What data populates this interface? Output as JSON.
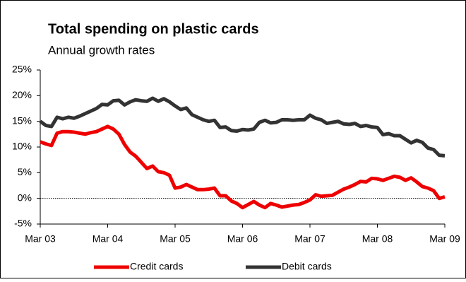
{
  "chart_data": {
    "type": "line",
    "title": "Total spending on plastic cards",
    "subtitle": "Annual growth rates",
    "categories": [
      "Mar 03",
      null,
      null,
      null,
      null,
      null,
      null,
      null,
      null,
      null,
      null,
      null,
      "Mar 04",
      null,
      null,
      null,
      null,
      null,
      null,
      null,
      null,
      null,
      null,
      null,
      "Mar 05",
      null,
      null,
      null,
      null,
      null,
      null,
      null,
      null,
      null,
      null,
      null,
      "Mar 06",
      null,
      null,
      null,
      null,
      null,
      null,
      null,
      null,
      null,
      null,
      null,
      "Mar 07",
      null,
      null,
      null,
      null,
      null,
      null,
      null,
      null,
      null,
      null,
      null,
      "Mar 08",
      null,
      null,
      null,
      null,
      null,
      null,
      null,
      null,
      null,
      null,
      null,
      "Mar 09"
    ],
    "series": [
      {
        "name": "Credit cards",
        "color": "#ee0000",
        "values": [
          11,
          10.6,
          10.3,
          12.7,
          13,
          13,
          12.9,
          12.7,
          12.5,
          12.8,
          13,
          13.5,
          14,
          13.5,
          12.5,
          10.5,
          9,
          8.2,
          7,
          5.8,
          6.3,
          5.2,
          5,
          4.5,
          2,
          2.2,
          2.7,
          2.2,
          1.7,
          1.7,
          1.8,
          2,
          0.5,
          0.5,
          -0.5,
          -1,
          -1.8,
          -1.2,
          -0.6,
          -1.3,
          -1.8,
          -1,
          -1.3,
          -1.7,
          -1.5,
          -1.3,
          -1.2,
          -0.8,
          -0.3,
          0.7,
          0.4,
          0.5,
          0.6,
          1.2,
          1.8,
          2.2,
          2.7,
          3.3,
          3.2,
          3.9,
          3.8,
          3.5,
          3.9,
          4.3,
          4.1,
          3.5,
          4,
          3.2,
          2.3,
          2,
          1.5,
          0,
          0.3
        ]
      },
      {
        "name": "Debit cards",
        "color": "#333333",
        "values": [
          15,
          14.2,
          14,
          15.8,
          15.5,
          15.8,
          15.6,
          16,
          16.5,
          17,
          17.5,
          18.3,
          18.2,
          19,
          19.1,
          18.2,
          18.8,
          19.2,
          19,
          18.9,
          19.5,
          18.9,
          19.4,
          18.8,
          18,
          17.3,
          17.6,
          16.3,
          15.8,
          15.3,
          15,
          15.2,
          13.8,
          13.9,
          13.2,
          13.1,
          13.4,
          13.3,
          13.5,
          14.8,
          15.2,
          14.7,
          14.8,
          15.3,
          15.3,
          15.2,
          15.3,
          15.3,
          16.2,
          15.6,
          15.3,
          14.6,
          14.8,
          15,
          14.5,
          14.4,
          14.6,
          14,
          14.2,
          13.9,
          13.8,
          12.4,
          12.6,
          12.2,
          12.2,
          11.5,
          10.8,
          11.3,
          10.9,
          9.8,
          9.5,
          8.4,
          8.3
        ]
      }
    ],
    "ylim": [
      -5,
      25
    ],
    "yticks": [
      {
        "value": -5,
        "label": "-5%"
      },
      {
        "value": 0,
        "label": "0%"
      },
      {
        "value": 5,
        "label": "5%"
      },
      {
        "value": 10,
        "label": "10%"
      },
      {
        "value": 15,
        "label": "15%"
      },
      {
        "value": 20,
        "label": "20%"
      },
      {
        "value": 25,
        "label": "25%"
      }
    ],
    "zero_line": true,
    "grid": false,
    "legend": "bottom"
  }
}
